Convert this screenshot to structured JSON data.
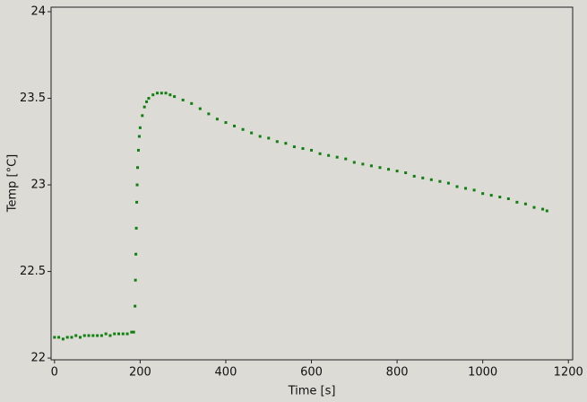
{
  "chart_data": {
    "type": "scatter",
    "x_label": "Time [s]",
    "y_label": "Temp [°C]",
    "series": [
      {
        "name": "Temp",
        "color": "#0f800f",
        "x": [
          0,
          10,
          20,
          30,
          40,
          50,
          60,
          70,
          80,
          90,
          100,
          110,
          120,
          130,
          140,
          150,
          160,
          170,
          180,
          185,
          188,
          189,
          190,
          191,
          192,
          193,
          194,
          196,
          198,
          200,
          205,
          210,
          215,
          220,
          230,
          240,
          250,
          260,
          270,
          280,
          300,
          320,
          340,
          360,
          380,
          400,
          420,
          440,
          460,
          480,
          500,
          520,
          540,
          560,
          580,
          600,
          620,
          640,
          660,
          680,
          700,
          720,
          740,
          760,
          780,
          800,
          820,
          840,
          860,
          880,
          900,
          920,
          940,
          960,
          980,
          1000,
          1020,
          1040,
          1060,
          1080,
          1100,
          1120,
          1140,
          1150
        ],
        "values": [
          22.12,
          22.12,
          22.11,
          22.12,
          22.12,
          22.13,
          22.12,
          22.13,
          22.13,
          22.13,
          22.13,
          22.13,
          22.14,
          22.13,
          22.14,
          22.14,
          22.14,
          22.14,
          22.15,
          22.15,
          22.3,
          22.45,
          22.6,
          22.75,
          22.9,
          23.0,
          23.1,
          23.2,
          23.28,
          23.33,
          23.4,
          23.45,
          23.48,
          23.5,
          23.52,
          23.53,
          23.53,
          23.53,
          23.52,
          23.51,
          23.49,
          23.47,
          23.44,
          23.41,
          23.38,
          23.36,
          23.34,
          23.32,
          23.3,
          23.28,
          23.27,
          23.25,
          23.24,
          23.22,
          23.21,
          23.2,
          23.18,
          23.17,
          23.16,
          23.15,
          23.13,
          23.12,
          23.11,
          23.1,
          23.09,
          23.08,
          23.07,
          23.05,
          23.04,
          23.03,
          23.02,
          23.01,
          22.99,
          22.98,
          22.97,
          22.95,
          22.94,
          22.93,
          22.92,
          22.9,
          22.89,
          22.87,
          22.86,
          22.85
        ]
      }
    ],
    "xlim": [
      -8,
      1210
    ],
    "ylim": [
      21.99,
      24.026
    ],
    "xticks": [
      0,
      200,
      400,
      600,
      800,
      1000,
      1200
    ],
    "yticks": [
      22,
      22.5,
      23,
      23.5,
      24
    ]
  }
}
